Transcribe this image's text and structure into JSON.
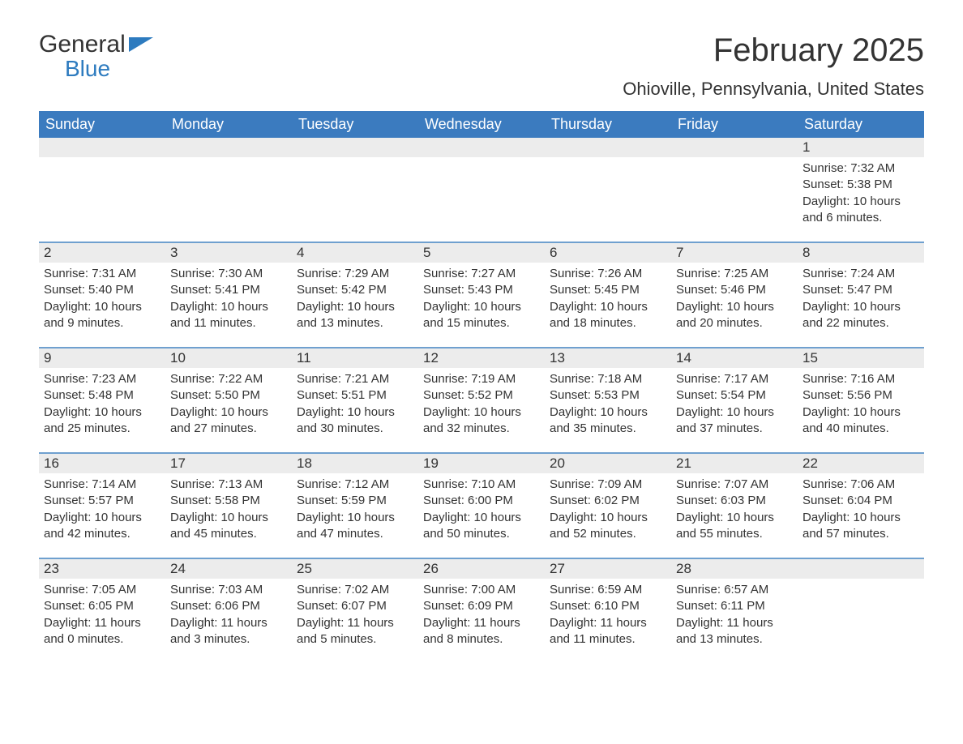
{
  "logo": {
    "text_general": "General",
    "text_blue": "Blue",
    "mark_color": "#2d7bbf"
  },
  "header": {
    "month_title": "February 2025",
    "location": "Ohioville, Pennsylvania, United States"
  },
  "colors": {
    "header_bg": "#3b7bbf",
    "header_text": "#ffffff",
    "week_border": "#6fa0cf",
    "daynum_bg": "#ececec",
    "text": "#333333",
    "background": "#ffffff"
  },
  "day_names": [
    "Sunday",
    "Monday",
    "Tuesday",
    "Wednesday",
    "Thursday",
    "Friday",
    "Saturday"
  ],
  "weeks": [
    [
      {
        "blank": true
      },
      {
        "blank": true
      },
      {
        "blank": true
      },
      {
        "blank": true
      },
      {
        "blank": true
      },
      {
        "blank": true
      },
      {
        "n": "1",
        "sunrise": "Sunrise: 7:32 AM",
        "sunset": "Sunset: 5:38 PM",
        "daylight1": "Daylight: 10 hours",
        "daylight2": "and 6 minutes."
      }
    ],
    [
      {
        "n": "2",
        "sunrise": "Sunrise: 7:31 AM",
        "sunset": "Sunset: 5:40 PM",
        "daylight1": "Daylight: 10 hours",
        "daylight2": "and 9 minutes."
      },
      {
        "n": "3",
        "sunrise": "Sunrise: 7:30 AM",
        "sunset": "Sunset: 5:41 PM",
        "daylight1": "Daylight: 10 hours",
        "daylight2": "and 11 minutes."
      },
      {
        "n": "4",
        "sunrise": "Sunrise: 7:29 AM",
        "sunset": "Sunset: 5:42 PM",
        "daylight1": "Daylight: 10 hours",
        "daylight2": "and 13 minutes."
      },
      {
        "n": "5",
        "sunrise": "Sunrise: 7:27 AM",
        "sunset": "Sunset: 5:43 PM",
        "daylight1": "Daylight: 10 hours",
        "daylight2": "and 15 minutes."
      },
      {
        "n": "6",
        "sunrise": "Sunrise: 7:26 AM",
        "sunset": "Sunset: 5:45 PM",
        "daylight1": "Daylight: 10 hours",
        "daylight2": "and 18 minutes."
      },
      {
        "n": "7",
        "sunrise": "Sunrise: 7:25 AM",
        "sunset": "Sunset: 5:46 PM",
        "daylight1": "Daylight: 10 hours",
        "daylight2": "and 20 minutes."
      },
      {
        "n": "8",
        "sunrise": "Sunrise: 7:24 AM",
        "sunset": "Sunset: 5:47 PM",
        "daylight1": "Daylight: 10 hours",
        "daylight2": "and 22 minutes."
      }
    ],
    [
      {
        "n": "9",
        "sunrise": "Sunrise: 7:23 AM",
        "sunset": "Sunset: 5:48 PM",
        "daylight1": "Daylight: 10 hours",
        "daylight2": "and 25 minutes."
      },
      {
        "n": "10",
        "sunrise": "Sunrise: 7:22 AM",
        "sunset": "Sunset: 5:50 PM",
        "daylight1": "Daylight: 10 hours",
        "daylight2": "and 27 minutes."
      },
      {
        "n": "11",
        "sunrise": "Sunrise: 7:21 AM",
        "sunset": "Sunset: 5:51 PM",
        "daylight1": "Daylight: 10 hours",
        "daylight2": "and 30 minutes."
      },
      {
        "n": "12",
        "sunrise": "Sunrise: 7:19 AM",
        "sunset": "Sunset: 5:52 PM",
        "daylight1": "Daylight: 10 hours",
        "daylight2": "and 32 minutes."
      },
      {
        "n": "13",
        "sunrise": "Sunrise: 7:18 AM",
        "sunset": "Sunset: 5:53 PM",
        "daylight1": "Daylight: 10 hours",
        "daylight2": "and 35 minutes."
      },
      {
        "n": "14",
        "sunrise": "Sunrise: 7:17 AM",
        "sunset": "Sunset: 5:54 PM",
        "daylight1": "Daylight: 10 hours",
        "daylight2": "and 37 minutes."
      },
      {
        "n": "15",
        "sunrise": "Sunrise: 7:16 AM",
        "sunset": "Sunset: 5:56 PM",
        "daylight1": "Daylight: 10 hours",
        "daylight2": "and 40 minutes."
      }
    ],
    [
      {
        "n": "16",
        "sunrise": "Sunrise: 7:14 AM",
        "sunset": "Sunset: 5:57 PM",
        "daylight1": "Daylight: 10 hours",
        "daylight2": "and 42 minutes."
      },
      {
        "n": "17",
        "sunrise": "Sunrise: 7:13 AM",
        "sunset": "Sunset: 5:58 PM",
        "daylight1": "Daylight: 10 hours",
        "daylight2": "and 45 minutes."
      },
      {
        "n": "18",
        "sunrise": "Sunrise: 7:12 AM",
        "sunset": "Sunset: 5:59 PM",
        "daylight1": "Daylight: 10 hours",
        "daylight2": "and 47 minutes."
      },
      {
        "n": "19",
        "sunrise": "Sunrise: 7:10 AM",
        "sunset": "Sunset: 6:00 PM",
        "daylight1": "Daylight: 10 hours",
        "daylight2": "and 50 minutes."
      },
      {
        "n": "20",
        "sunrise": "Sunrise: 7:09 AM",
        "sunset": "Sunset: 6:02 PM",
        "daylight1": "Daylight: 10 hours",
        "daylight2": "and 52 minutes."
      },
      {
        "n": "21",
        "sunrise": "Sunrise: 7:07 AM",
        "sunset": "Sunset: 6:03 PM",
        "daylight1": "Daylight: 10 hours",
        "daylight2": "and 55 minutes."
      },
      {
        "n": "22",
        "sunrise": "Sunrise: 7:06 AM",
        "sunset": "Sunset: 6:04 PM",
        "daylight1": "Daylight: 10 hours",
        "daylight2": "and 57 minutes."
      }
    ],
    [
      {
        "n": "23",
        "sunrise": "Sunrise: 7:05 AM",
        "sunset": "Sunset: 6:05 PM",
        "daylight1": "Daylight: 11 hours",
        "daylight2": "and 0 minutes."
      },
      {
        "n": "24",
        "sunrise": "Sunrise: 7:03 AM",
        "sunset": "Sunset: 6:06 PM",
        "daylight1": "Daylight: 11 hours",
        "daylight2": "and 3 minutes."
      },
      {
        "n": "25",
        "sunrise": "Sunrise: 7:02 AM",
        "sunset": "Sunset: 6:07 PM",
        "daylight1": "Daylight: 11 hours",
        "daylight2": "and 5 minutes."
      },
      {
        "n": "26",
        "sunrise": "Sunrise: 7:00 AM",
        "sunset": "Sunset: 6:09 PM",
        "daylight1": "Daylight: 11 hours",
        "daylight2": "and 8 minutes."
      },
      {
        "n": "27",
        "sunrise": "Sunrise: 6:59 AM",
        "sunset": "Sunset: 6:10 PM",
        "daylight1": "Daylight: 11 hours",
        "daylight2": "and 11 minutes."
      },
      {
        "n": "28",
        "sunrise": "Sunrise: 6:57 AM",
        "sunset": "Sunset: 6:11 PM",
        "daylight1": "Daylight: 11 hours",
        "daylight2": "and 13 minutes."
      },
      {
        "blank": true
      }
    ]
  ]
}
